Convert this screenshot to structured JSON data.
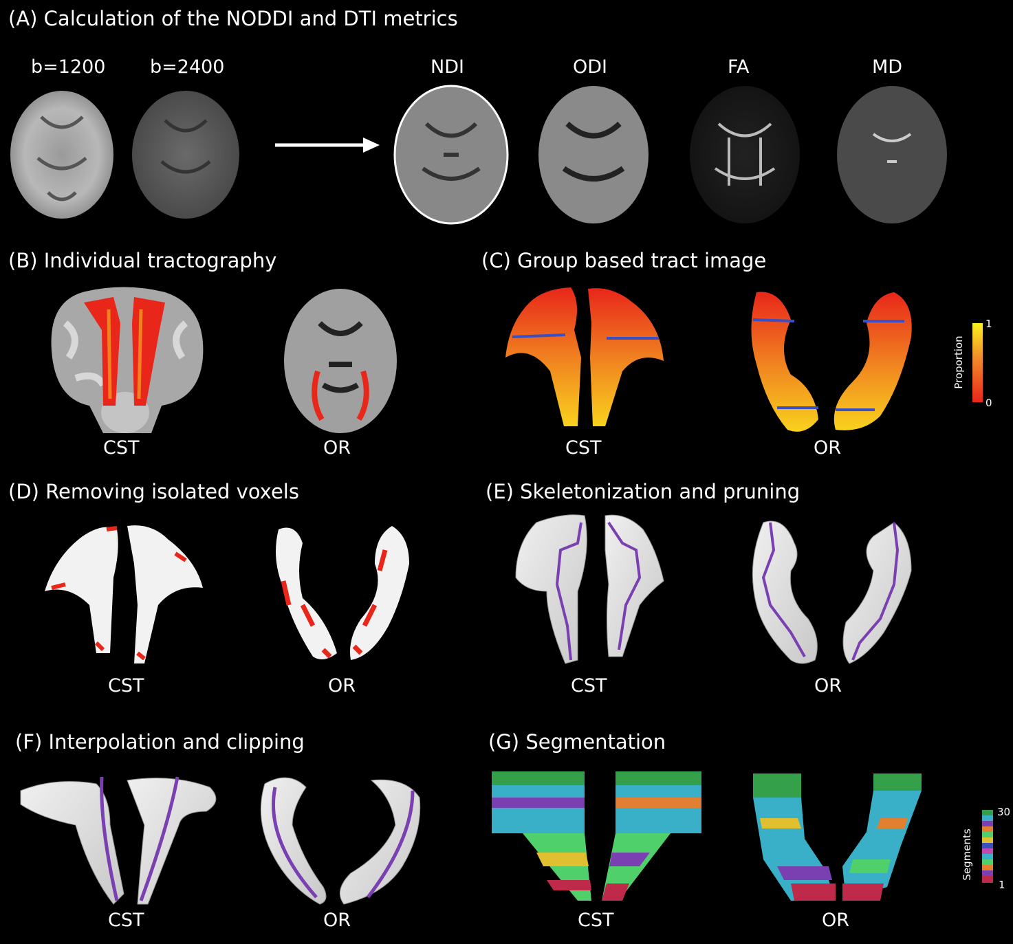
{
  "panels": {
    "A": {
      "title": "(A) Calculation of the NODDI and DTI metrics",
      "inputs": [
        "b=1200",
        "b=2400"
      ],
      "metrics": [
        "NDI",
        "ODI",
        "FA",
        "MD"
      ]
    },
    "B": {
      "title": "(B) Individual tractography",
      "left": "CST",
      "right": "OR"
    },
    "C": {
      "title": "(C) Group based tract image",
      "left": "CST",
      "right": "OR",
      "colorbar": {
        "label": "Proportion",
        "max": "1",
        "min": "0"
      }
    },
    "D": {
      "title": "(D) Removing isolated voxels",
      "left": "CST",
      "right": "OR"
    },
    "E": {
      "title": "(E) Skeletonization and pruning",
      "left": "CST",
      "right": "OR"
    },
    "F": {
      "title": "(F) Interpolation and clipping",
      "left": "CST",
      "right": "OR"
    },
    "G": {
      "title": "(G) Segmentation",
      "left": "CST",
      "right": "OR",
      "colorbar": {
        "label": "Segments",
        "max": "30",
        "min": "1"
      }
    }
  },
  "colors": {
    "tract_red": "#e8261a",
    "tract_yellow": "#f7e01c",
    "skeleton": "#7a3fb0",
    "surface": "#e4e4e4",
    "overlay_blue": "#3a4fc0"
  }
}
